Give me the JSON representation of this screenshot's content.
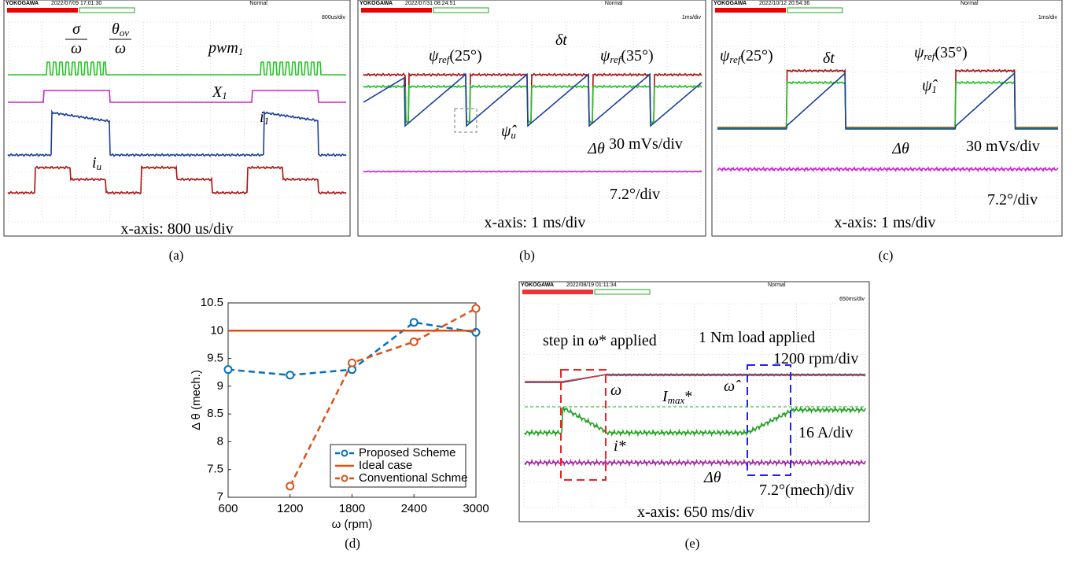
{
  "panels": [
    {
      "brand": "YOKOGAWA",
      "date": "2022/07/09 17:01:30",
      "mode": "Normal",
      "timebase": "800us/div",
      "caption": "(a)",
      "fractions": [
        {
          "num": "σ",
          "den": "ω"
        },
        {
          "num": "θ",
          "num_sub": "ov",
          "den": "ω"
        }
      ],
      "annotations": [
        {
          "text": "pwm",
          "sub": "1"
        },
        {
          "text": "X",
          "sub": "1"
        },
        {
          "text": "i",
          "sub": "1"
        },
        {
          "text": "i",
          "sub": "u"
        },
        {
          "text": "x-axis: 800 us/div"
        }
      ]
    },
    {
      "brand": "YOKOGAWA",
      "date": "2022/07/31 08:24:51",
      "mode": "Normal",
      "timebase": "1ms/div",
      "caption": "(b)",
      "fractions": [],
      "annotations": [
        {
          "text": "ψ",
          "sub": "ref",
          "suffix": "(25°)"
        },
        {
          "text": "δt"
        },
        {
          "text": "ψ",
          "sub": "ref",
          "suffix": "(35°)"
        },
        {
          "text": "ψ̂",
          "sub": "u"
        },
        {
          "text": "30 mVs/div"
        },
        {
          "text": "Δθ"
        },
        {
          "text": "7.2°/div"
        },
        {
          "text": "x-axis: 1 ms/div"
        }
      ]
    },
    {
      "brand": "YOKOGAWA",
      "date": "2022/10/12 20:54:36",
      "mode": "Normal",
      "timebase": "1ms/div",
      "caption": "(c)",
      "fractions": [],
      "annotations": [
        {
          "text": "ψ",
          "sub": "ref",
          "suffix": "(25°)"
        },
        {
          "text": "δt"
        },
        {
          "text": "ψ",
          "sub": "ref",
          "suffix": "(35°)"
        },
        {
          "text": "ψ̂",
          "sub": "1"
        },
        {
          "text": "Δθ"
        },
        {
          "text": "30 mVs/div"
        },
        {
          "text": "7.2°/div"
        },
        {
          "text": "x-axis: 1 ms/div"
        }
      ]
    },
    {
      "brand": "YOKOGAWA",
      "date": "2022/08/19 01:11:34",
      "mode": "Normal",
      "timebase": "650ms/div",
      "caption": "(e)",
      "fractions": [],
      "annotations": [
        {
          "text": "step in ω* applied"
        },
        {
          "text": "1 Nm load applied"
        },
        {
          "text": "1200 rpm/div"
        },
        {
          "text": "ω"
        },
        {
          "text": "ω̂"
        },
        {
          "text": "I",
          "sub": "max",
          "suffix": "*"
        },
        {
          "text": "16 A/div"
        },
        {
          "text": "i*"
        },
        {
          "text": "Δθ"
        },
        {
          "text": "7.2°(mech)/div"
        },
        {
          "text": "x-axis: 650 ms/div"
        }
      ]
    }
  ],
  "chart_data": {
    "type": "line",
    "caption": "(d)",
    "xlabel": "ω (rpm)",
    "ylabel": "Δ θ (mech.)",
    "x": [
      600,
      1200,
      1800,
      2400,
      3000
    ],
    "series": [
      {
        "name": "Proposed Scheme",
        "color": "#0072bd",
        "style": "dashed-marker",
        "values": [
          9.3,
          9.2,
          9.3,
          10.15,
          9.97
        ]
      },
      {
        "name": "Ideal case",
        "color": "#d95319",
        "style": "solid",
        "values": [
          10,
          10,
          10,
          10,
          10
        ]
      },
      {
        "name": "Conventional Schme",
        "color": "#d95319",
        "style": "dashed-marker",
        "values": [
          null,
          7.2,
          9.42,
          9.8,
          10.4
        ]
      }
    ],
    "xlim": [
      600,
      3000
    ],
    "xticks": [
      600,
      1200,
      1800,
      2400,
      3000
    ],
    "ylim": [
      7,
      10.5
    ],
    "yticks": [
      7,
      7.5,
      8,
      8.5,
      9,
      9.5,
      10,
      10.5
    ],
    "legend": "lower right"
  }
}
